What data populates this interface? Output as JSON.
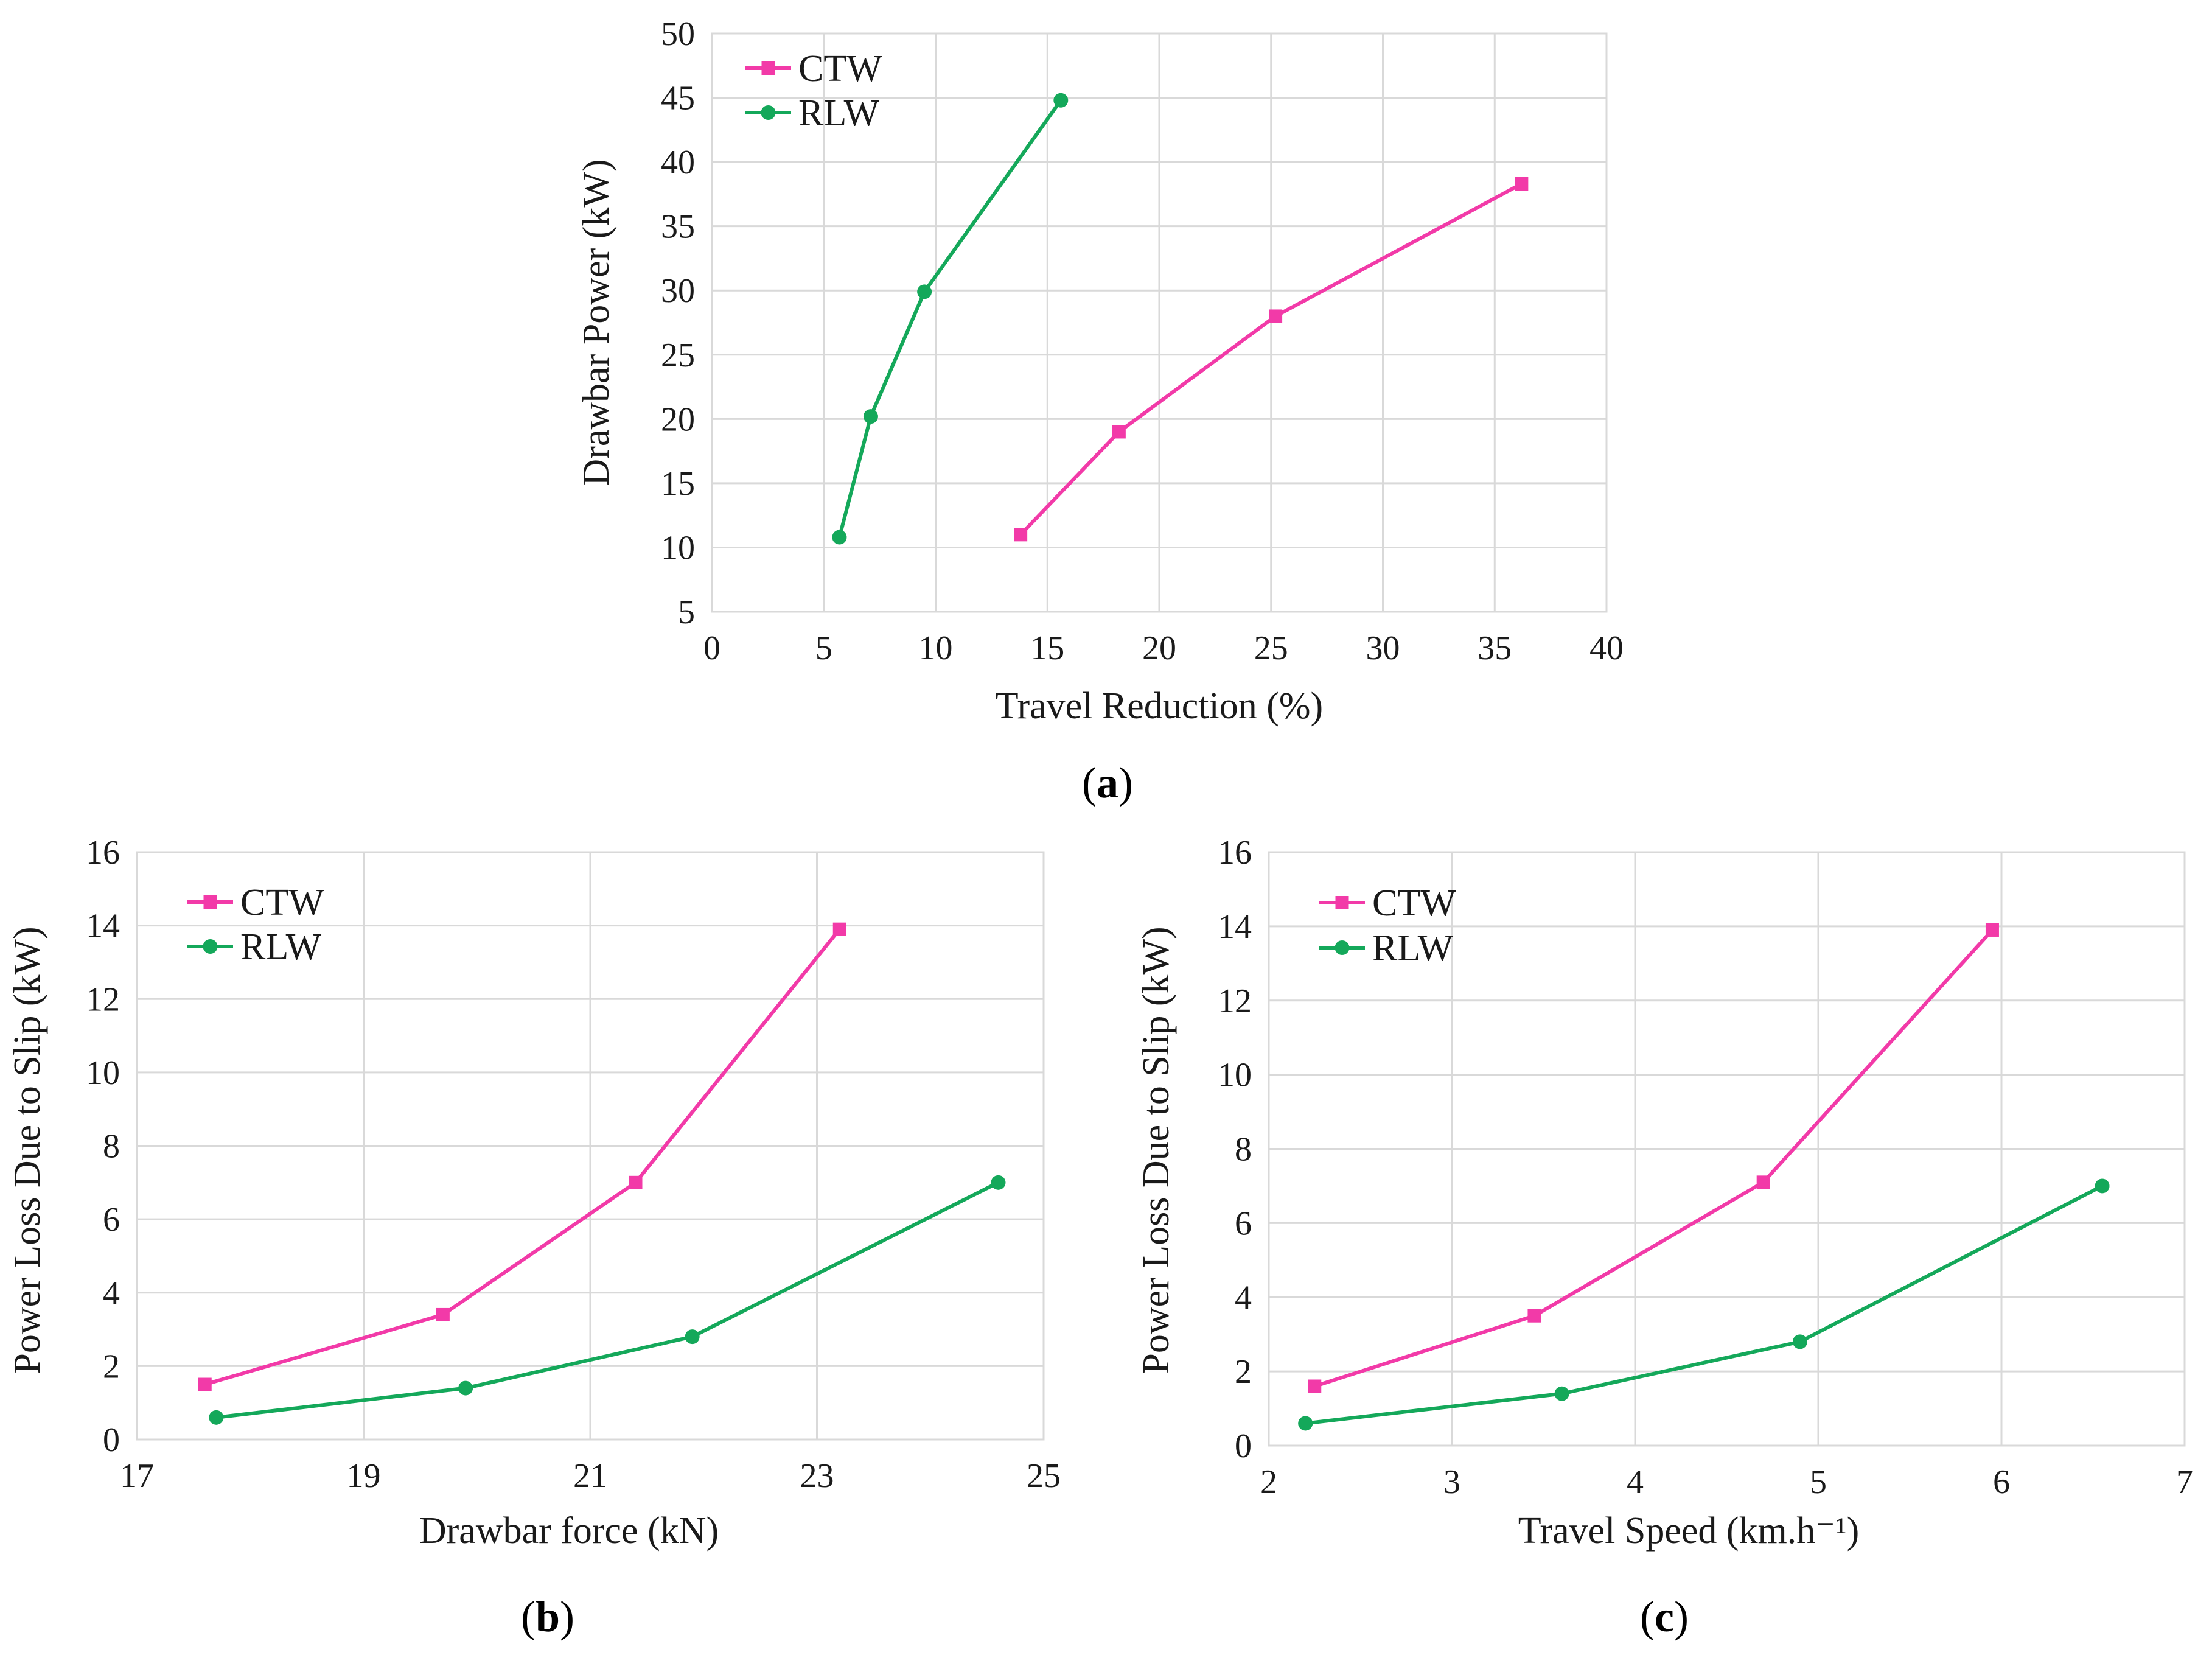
{
  "colors": {
    "CTW": "#f23aa8",
    "RLW": "#14a85a"
  },
  "chart_data": [
    {
      "id": "a",
      "type": "line",
      "panel_label": "a",
      "xlabel": "Travel Reduction (%)",
      "ylabel": "Drawbar Power (kW)",
      "xlim": [
        0,
        40
      ],
      "ylim": [
        5,
        50
      ],
      "xticks": [
        0,
        5,
        10,
        15,
        20,
        25,
        30,
        35,
        40
      ],
      "yticks": [
        5,
        10,
        15,
        20,
        25,
        30,
        35,
        40,
        45,
        50
      ],
      "legend": "top-left",
      "series": [
        {
          "name": "CTW",
          "marker": "square",
          "x": [
            13.8,
            18.2,
            25.2,
            36.2
          ],
          "y": [
            11.0,
            19.0,
            28.0,
            38.3
          ]
        },
        {
          "name": "RLW",
          "marker": "circle",
          "x": [
            5.7,
            7.1,
            9.5,
            15.6
          ],
          "y": [
            10.8,
            20.2,
            29.9,
            44.8
          ]
        }
      ]
    },
    {
      "id": "b",
      "type": "line",
      "panel_label": "b",
      "xlabel": "Drawbar force (kN)",
      "ylabel": "Power Loss Due to Slip (kW)",
      "xlim": [
        17,
        25
      ],
      "ylim": [
        0,
        16
      ],
      "xticks": [
        17,
        19,
        21,
        23,
        25
      ],
      "yticks": [
        0,
        2,
        4,
        6,
        8,
        10,
        12,
        14,
        16
      ],
      "legend": "top-left",
      "series": [
        {
          "name": "CTW",
          "marker": "square",
          "x": [
            17.6,
            19.7,
            21.4,
            23.2
          ],
          "y": [
            1.5,
            3.4,
            7.0,
            13.9
          ]
        },
        {
          "name": "RLW",
          "marker": "circle",
          "x": [
            17.7,
            19.9,
            21.9,
            24.6
          ],
          "y": [
            0.6,
            1.4,
            2.8,
            7.0
          ]
        }
      ]
    },
    {
      "id": "c",
      "type": "line",
      "panel_label": "c",
      "xlabel": "Travel Speed (km.h⁻¹)",
      "ylabel": "Power Loss Due to Slip (kW)",
      "xlim": [
        2,
        7
      ],
      "ylim": [
        0,
        16
      ],
      "xticks": [
        2,
        3,
        4,
        5,
        6,
        7
      ],
      "yticks": [
        0,
        2,
        4,
        6,
        8,
        10,
        12,
        14,
        16
      ],
      "legend": "top-left",
      "series": [
        {
          "name": "CTW",
          "marker": "square",
          "x": [
            2.25,
            3.45,
            4.7,
            5.95
          ],
          "y": [
            1.6,
            3.5,
            7.1,
            13.9
          ]
        },
        {
          "name": "RLW",
          "marker": "circle",
          "x": [
            2.2,
            3.6,
            4.9,
            6.55
          ],
          "y": [
            0.6,
            1.4,
            2.8,
            7.0
          ]
        }
      ]
    }
  ]
}
